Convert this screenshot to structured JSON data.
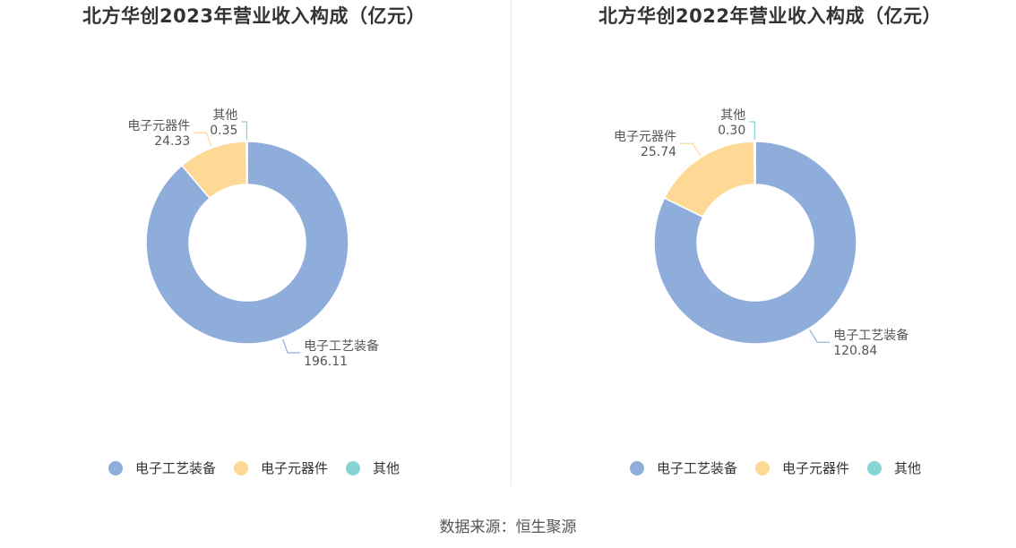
{
  "chart_data": [
    {
      "type": "pie",
      "title": "北方华创2023年营业收入构成（亿元）",
      "categories": [
        "电子工艺装备",
        "电子元器件",
        "其他"
      ],
      "values": [
        196.11,
        24.33,
        0.35
      ],
      "value_labels": [
        "196.11",
        "24.33",
        "0.35"
      ],
      "colors": [
        "#8eaddb",
        "#fdd995",
        "#86d4d4"
      ],
      "legend_placement": "bottom",
      "donut": true
    },
    {
      "type": "pie",
      "title": "北方华创2022年营业收入构成（亿元）",
      "categories": [
        "电子工艺装备",
        "电子元器件",
        "其他"
      ],
      "values": [
        120.84,
        25.74,
        0.3
      ],
      "value_labels": [
        "120.84",
        "25.74",
        "0.30"
      ],
      "colors": [
        "#8eaddb",
        "#fdd995",
        "#86d4d4"
      ],
      "legend_placement": "bottom",
      "donut": true
    }
  ],
  "footer": {
    "source": "数据来源：恒生聚源"
  }
}
